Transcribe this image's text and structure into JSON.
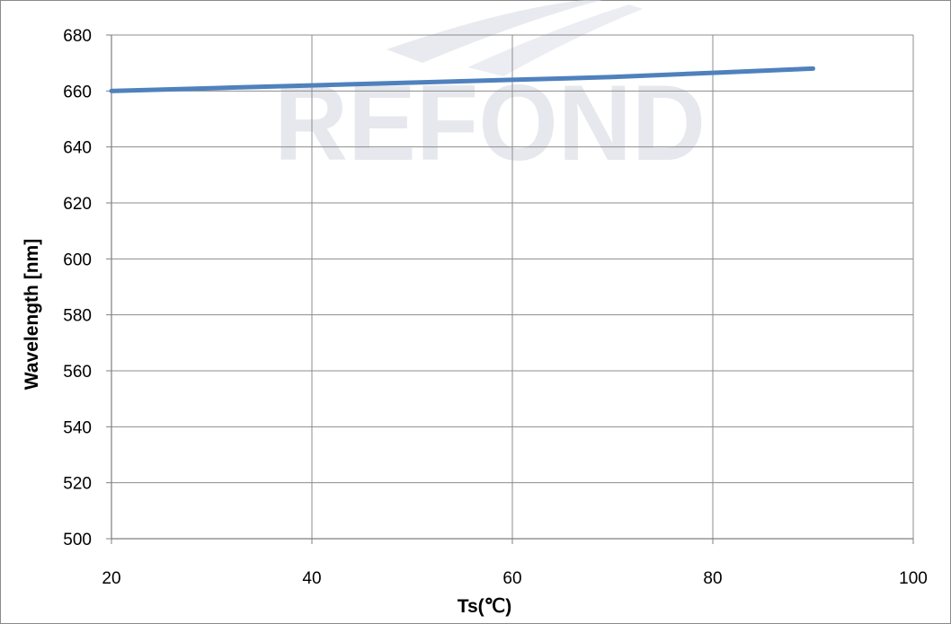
{
  "watermark": {
    "text": "REFOND"
  },
  "chart_data": {
    "type": "line",
    "title": "",
    "xlabel": "Ts(℃)",
    "ylabel": "Wavelength  [nm]",
    "xlim": [
      20,
      100
    ],
    "ylim": [
      500,
      680
    ],
    "x_ticks": [
      "20",
      "40",
      "60",
      "80",
      "100"
    ],
    "y_ticks": [
      "500",
      "520",
      "540",
      "560",
      "580",
      "600",
      "620",
      "640",
      "660",
      "680"
    ],
    "grid": true,
    "legend": "none",
    "series": [
      {
        "color": "#4f81bd",
        "x": [
          20,
          30,
          40,
          50,
          60,
          70,
          80,
          90
        ],
        "y": [
          660,
          661,
          662,
          663,
          664,
          665,
          666.5,
          668
        ]
      }
    ]
  }
}
